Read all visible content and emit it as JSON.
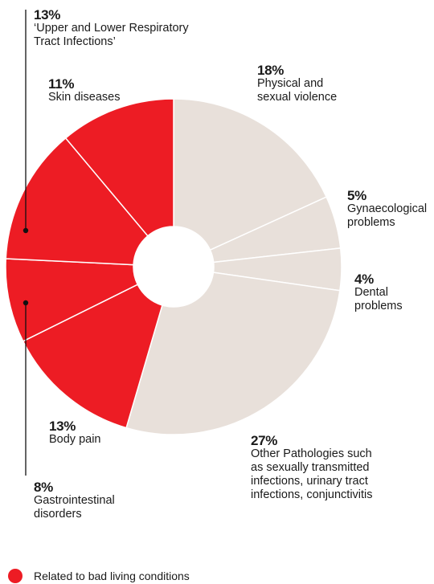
{
  "chart_data": {
    "type": "pie",
    "style": "donut",
    "order": "clockwise from top",
    "slices": [
      {
        "value": 18,
        "label": "18%",
        "name": "Physical and sexual violence",
        "group": "other"
      },
      {
        "value": 5,
        "label": "5%",
        "name": "Gynaecological problems",
        "group": "other"
      },
      {
        "value": 4,
        "label": "4%",
        "name": "Dental problems",
        "group": "other"
      },
      {
        "value": 27,
        "label": "27%",
        "name": "Other Pathologies such as sexually transmitted infections, urinary tract infections, conjunctivitis",
        "group": "other"
      },
      {
        "value": 13,
        "label": "13%",
        "name": "Body pain",
        "group": "bad_living"
      },
      {
        "value": 8,
        "label": "8%",
        "name": "Gastrointestinal disorders",
        "group": "bad_living"
      },
      {
        "value": 13,
        "label": "13%",
        "name": "‘Upper and Lower Respiratory Tract Infections’",
        "group": "bad_living"
      },
      {
        "value": 11,
        "label": "11%",
        "name": "Skin diseases",
        "group": "bad_living"
      }
    ],
    "colors": {
      "bad_living": "#ed1c24",
      "other": "#e8e0da"
    },
    "legend": [
      {
        "group": "bad_living",
        "label": "Related to bad living conditions"
      }
    ]
  },
  "labels": {
    "violence": {
      "pct": "18%",
      "lines": [
        "Physical and",
        "sexual violence"
      ]
    },
    "gyn": {
      "pct": "5%",
      "lines": [
        "Gynaecological",
        "problems"
      ]
    },
    "dental": {
      "pct": "4%",
      "lines": [
        "Dental",
        "problems"
      ]
    },
    "other": {
      "pct": "27%",
      "lines": [
        "Other Pathologies such",
        "as sexually transmitted",
        "infections, urinary tract",
        "infections, conjunctivitis"
      ]
    },
    "body": {
      "pct": "13%",
      "lines": [
        "Body pain"
      ]
    },
    "gastro": {
      "pct": "8%",
      "lines": [
        "Gastrointestinal",
        "disorders"
      ]
    },
    "resp": {
      "pct": "13%",
      "lines": [
        "‘Upper and Lower Respiratory",
        "Tract Infections’"
      ]
    },
    "skin": {
      "pct": "11%",
      "lines": [
        "Skin diseases"
      ]
    }
  },
  "legend": {
    "label": "Related to bad living conditions",
    "color": "#ed1c24"
  }
}
